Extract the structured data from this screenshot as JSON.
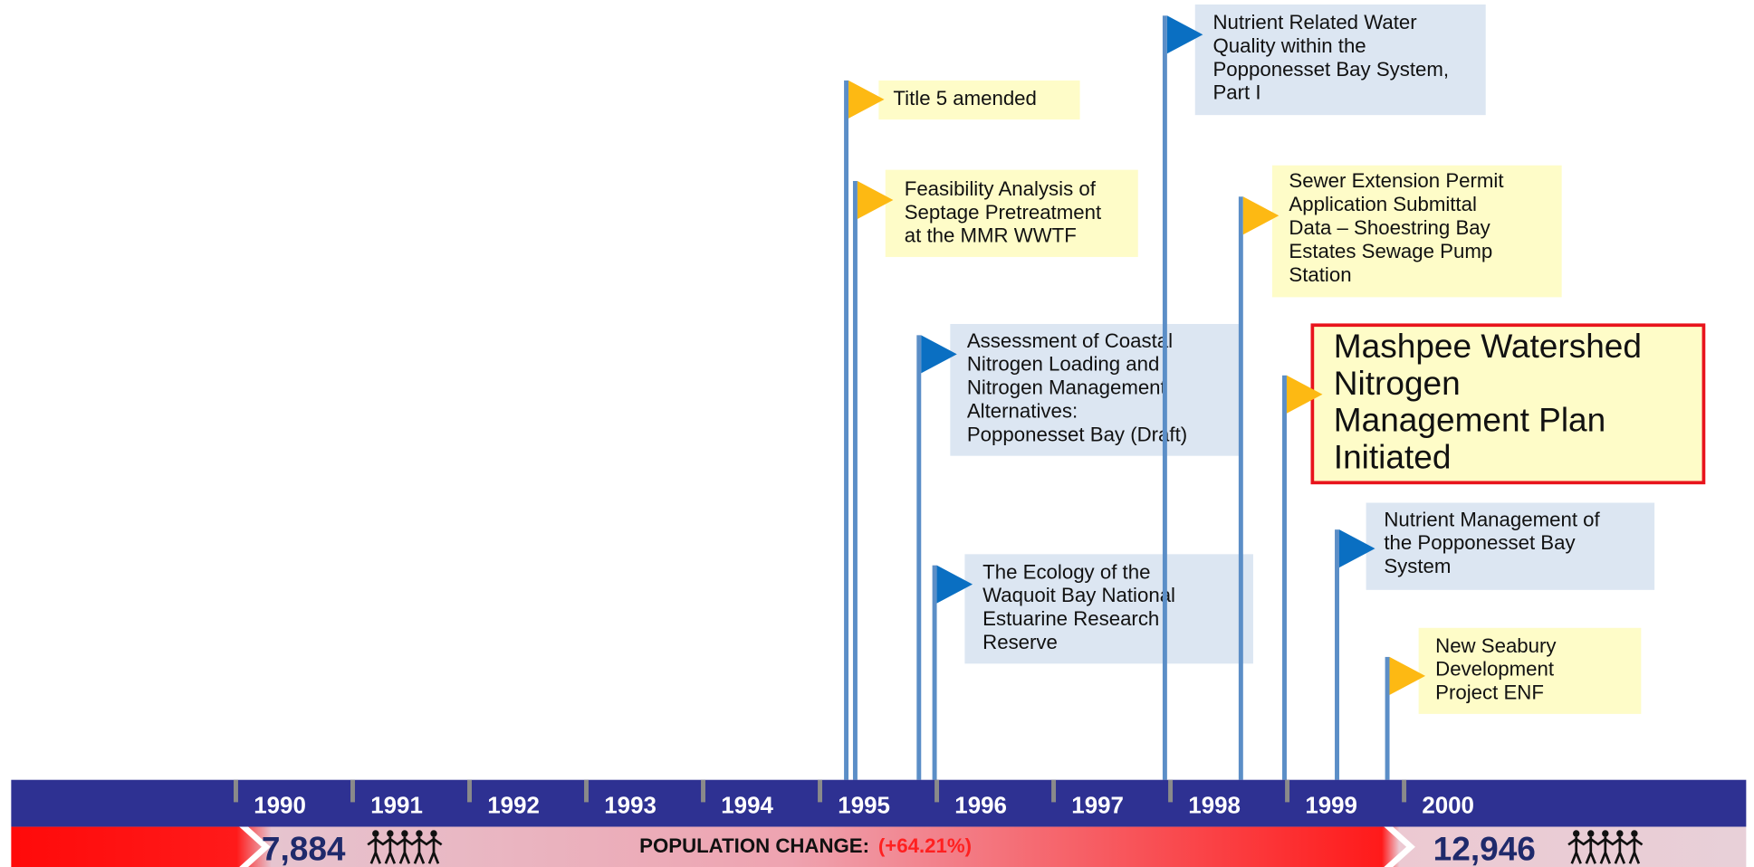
{
  "years": [
    1990,
    1991,
    1992,
    1993,
    1994,
    1995,
    1996,
    1997,
    1998,
    1999,
    2000
  ],
  "events": [
    {
      "color": "yellow",
      "lines": [
        "Title 5 amended"
      ]
    },
    {
      "color": "yellow",
      "lines": [
        "Feasibility Analysis of",
        "Septage Pretreatment",
        "at the MMR WWTF"
      ]
    },
    {
      "color": "blue",
      "lines": [
        "Assessment of Coastal",
        "Nitrogen Loading and",
        "Nitrogen Management",
        "Alternatives:",
        "Popponesset Bay (Draft)"
      ]
    },
    {
      "color": "blue",
      "lines": [
        "The Ecology of the",
        "Waquoit Bay National",
        "Estuarine Research",
        "Reserve"
      ]
    },
    {
      "color": "blue",
      "lines": [
        "Nutrient Related Water",
        "Quality within the",
        "Popponesset Bay System,",
        "Part I"
      ]
    },
    {
      "color": "yellow",
      "lines": [
        "Sewer Extension Permit",
        "Application Submittal",
        "Data – Shoestring Bay",
        "Estates Sewage Pump",
        "Station"
      ]
    },
    {
      "color": "yellow",
      "highlight": true,
      "lines": [
        "Mashpee Watershed",
        "Nitrogen",
        "Management Plan",
        "Initiated"
      ]
    },
    {
      "color": "blue",
      "lines": [
        "Nutrient Management of",
        "the Popponesset Bay",
        "System"
      ]
    },
    {
      "color": "yellow",
      "lines": [
        "New Seabury",
        "Development",
        "Project ENF"
      ]
    }
  ],
  "population": {
    "start": "7,884",
    "end": "12,946",
    "label": "POPULATION CHANGE:",
    "change": "(+64.21%)"
  }
}
